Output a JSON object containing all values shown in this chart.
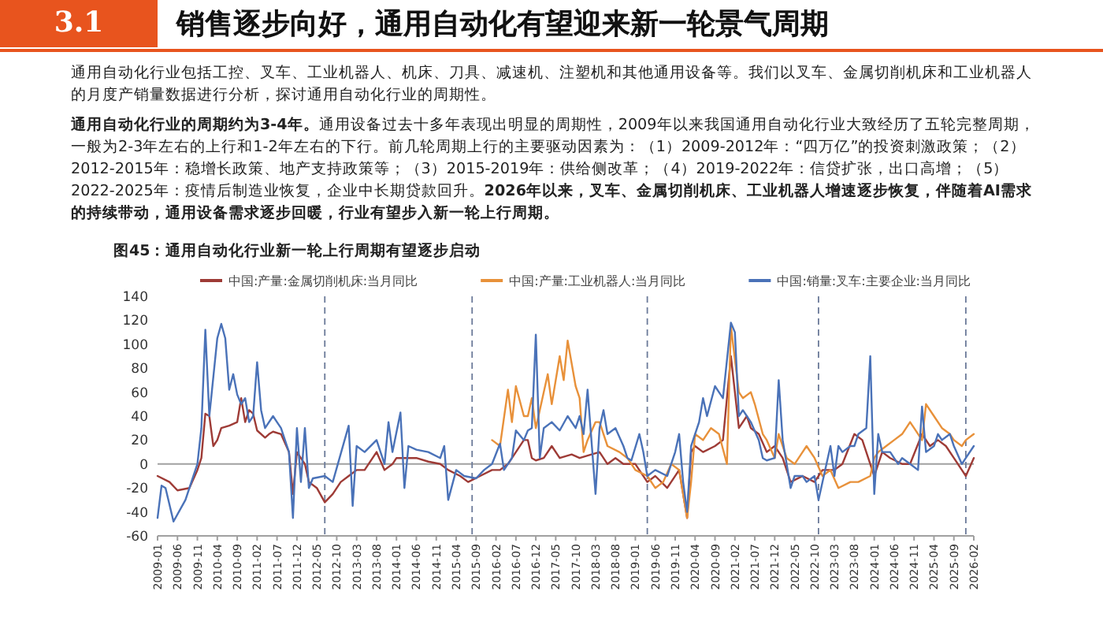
{
  "chart_data": {
    "type": "line",
    "title": "销售逐步向好，通用自动化有望迎来新一轮景气周期",
    "subtitle": "图45：通用自动化行业新一轮上行周期有望逐步启动",
    "annotations": [
      "3.1",
      "通用自动化行业包括工控、叉车、工业机器人、机床、刀具、减速机、注塑机和其他通用设备等。我们以叉车、金属切削机床和工业机器人的月度产销量数据进行分析，探讨通用自动化行业的周期性。",
      "通用自动化行业的周期约为3-4年。",
      "通用设备过去十多年表现出明显的周期性，2009年以来我国通用自动化行业大致经历了五轮完整周期，一般为2-3年左右的上行和1-2年左右的下行。前几轮周期上行的主要驱动因素为：（1）2009-2012年：“四万亿”的投资刺激政策；（2）2012-2015年：稳增长政策、地产支持政策等；（3）2015-2019年：供给侧改革；（4）2019-2022年：信贷扩张，出口高增；（5）2022-2025年：疫情后制造业恢复，企业中长期贷款回升。",
      "2026年以来，叉车、金属切削机床、工业机器人增速逐步恢复，伴随着AI需求的持续带动，通用设备需求逐步回暖，行业有望步入新一轮上行周期。"
    ],
    "legend": "top",
    "line_style": "solid",
    "xlim": [
      "2009-01",
      "2026-02"
    ],
    "xticks": [
      "2009-01",
      "2009-06",
      "2009-11",
      "2010-04",
      "2010-09",
      "2011-02",
      "2011-07",
      "2011-12",
      "2012-05",
      "2012-10",
      "2013-03",
      "2013-08",
      "2014-01",
      "2014-06",
      "2014-11",
      "2015-04",
      "2015-09",
      "2016-02",
      "2016-07",
      "2016-12",
      "2017-05",
      "2017-10",
      "2018-03",
      "2018-08",
      "2019-01",
      "2019-06",
      "2019-11",
      "2020-04",
      "2020-09",
      "2021-02",
      "2021-07",
      "2021-12",
      "2022-05",
      "2022-10",
      "2023-03",
      "2023-08",
      "2024-01",
      "2024-06",
      "2024-11",
      "2025-04",
      "2025-09",
      "2026-02"
    ],
    "ylim": [
      -60,
      140
    ],
    "yticks": [
      -60,
      -40,
      -20,
      0,
      20,
      40,
      60,
      80,
      100,
      120,
      140
    ],
    "ref_lines": [
      {
        "axis": "x",
        "value": "2012-07",
        "color": "#6b7a99",
        "line_style": "dashed"
      },
      {
        "axis": "x",
        "value": "2015-08",
        "color": "#6b7a99",
        "line_style": "dashed"
      },
      {
        "axis": "x",
        "value": "2019-04",
        "color": "#6b7a99",
        "line_style": "dashed"
      },
      {
        "axis": "x",
        "value": "2022-11",
        "color": "#6b7a99",
        "line_style": "dashed"
      },
      {
        "axis": "x",
        "value": "2025-12",
        "color": "#6b7a99",
        "line_style": "dashed"
      }
    ],
    "series": [
      {
        "name": "中国:产量:金属切削机床:当月同比",
        "color": "#9e3b36",
        "x": [
          "2009-01",
          "2009-04",
          "2009-06",
          "2009-09",
          "2009-11",
          "2009-12",
          "2010-01",
          "2010-02",
          "2010-03",
          "2010-04",
          "2010-05",
          "2010-07",
          "2010-09",
          "2010-10",
          "2010-11",
          "2010-12",
          "2011-01",
          "2011-02",
          "2011-04",
          "2011-05",
          "2011-06",
          "2011-08",
          "2011-10",
          "2011-11",
          "2011-12",
          "2012-02",
          "2012-03",
          "2012-05",
          "2012-07",
          "2012-09",
          "2012-11",
          "2013-01",
          "2013-03",
          "2013-05",
          "2013-08",
          "2013-10",
          "2013-12",
          "2014-01",
          "2014-04",
          "2014-06",
          "2014-09",
          "2014-12",
          "2015-02",
          "2015-05",
          "2015-07",
          "2015-10",
          "2016-01",
          "2016-03",
          "2016-05",
          "2016-07",
          "2016-09",
          "2016-10",
          "2016-11",
          "2016-12",
          "2017-02",
          "2017-04",
          "2017-06",
          "2017-09",
          "2017-11",
          "2018-04",
          "2018-06",
          "2018-08",
          "2018-10",
          "2019-01",
          "2019-04",
          "2019-06",
          "2019-09",
          "2019-12",
          "2020-02",
          "2020-03",
          "2020-04",
          "2020-06",
          "2020-09",
          "2020-11",
          "2021-01",
          "2021-03",
          "2021-05",
          "2021-06",
          "2021-08",
          "2021-10",
          "2021-12",
          "2022-02",
          "2022-04",
          "2022-07",
          "2022-10",
          "2022-12",
          "2023-03",
          "2023-05",
          "2023-08",
          "2023-10",
          "2023-12",
          "2024-01",
          "2024-03",
          "2024-05",
          "2024-08",
          "2024-10",
          "2025-01",
          "2025-03",
          "2025-05",
          "2025-07",
          "2025-09",
          "2025-11",
          "2025-12",
          "2026-02"
        ],
        "values": [
          -10,
          -15,
          -22,
          -20,
          -5,
          5,
          42,
          40,
          15,
          20,
          30,
          32,
          35,
          55,
          35,
          45,
          42,
          28,
          22,
          25,
          27,
          25,
          10,
          -25,
          10,
          0,
          -15,
          -20,
          -32,
          -25,
          -15,
          -10,
          -5,
          -5,
          10,
          -5,
          0,
          5,
          5,
          5,
          2,
          0,
          -5,
          -10,
          -15,
          -10,
          -5,
          -5,
          0,
          10,
          20,
          20,
          5,
          3,
          5,
          15,
          5,
          8,
          5,
          10,
          0,
          5,
          0,
          0,
          -15,
          -10,
          -20,
          -5,
          -45,
          10,
          15,
          10,
          15,
          20,
          90,
          30,
          40,
          30,
          25,
          10,
          15,
          5,
          -15,
          -10,
          -15,
          -5,
          -5,
          0,
          25,
          20,
          0,
          -10,
          10,
          5,
          0,
          0,
          25,
          15,
          20,
          15,
          5,
          -5,
          -10,
          5
        ]
      },
      {
        "name": "中国:产量:工业机器人:当月同比",
        "color": "#e8913a",
        "x": [
          "2016-01",
          "2016-03",
          "2016-05",
          "2016-06",
          "2016-07",
          "2016-09",
          "2016-10",
          "2016-11",
          "2016-12",
          "2017-02",
          "2017-03",
          "2017-04",
          "2017-06",
          "2017-07",
          "2017-08",
          "2017-10",
          "2017-11",
          "2017-12",
          "2018-01",
          "2018-03",
          "2018-04",
          "2018-06",
          "2018-09",
          "2018-11",
          "2019-01",
          "2019-04",
          "2019-06",
          "2019-08",
          "2019-10",
          "2019-12",
          "2020-02",
          "2020-03",
          "2020-04",
          "2020-06",
          "2020-08",
          "2020-10",
          "2020-12",
          "2021-01",
          "2021-03",
          "2021-04",
          "2021-06",
          "2021-07",
          "2021-09",
          "2021-10",
          "2021-12",
          "2022-01",
          "2022-03",
          "2022-05",
          "2022-07",
          "2022-08",
          "2022-10",
          "2022-12",
          "2023-02",
          "2023-04",
          "2023-07",
          "2023-09",
          "2023-12",
          "2024-01",
          "2024-02",
          "2024-04",
          "2024-06",
          "2024-08",
          "2024-10",
          "2024-11",
          "2025-01",
          "2025-02",
          "2025-04",
          "2025-06",
          "2025-08",
          "2025-09",
          "2025-11",
          "2025-12",
          "2026-02"
        ],
        "values": [
          20,
          15,
          62,
          35,
          65,
          40,
          40,
          55,
          30,
          60,
          75,
          50,
          90,
          70,
          103,
          65,
          55,
          10,
          20,
          35,
          35,
          15,
          10,
          5,
          -5,
          -10,
          -20,
          -15,
          0,
          -5,
          -45,
          -15,
          25,
          20,
          30,
          25,
          0,
          115,
          60,
          55,
          60,
          50,
          25,
          20,
          5,
          25,
          5,
          0,
          10,
          15,
          5,
          -10,
          -5,
          -20,
          -15,
          -15,
          -10,
          5,
          10,
          15,
          20,
          25,
          35,
          30,
          20,
          50,
          40,
          30,
          25,
          20,
          15,
          20,
          25
        ]
      },
      {
        "name": "中国:销量:叉车:主要企业:当月同比",
        "color": "#4a72b8",
        "x": [
          "2009-01",
          "2009-02",
          "2009-03",
          "2009-05",
          "2009-08",
          "2009-10",
          "2009-11",
          "2009-12",
          "2010-01",
          "2010-02",
          "2010-04",
          "2010-05",
          "2010-06",
          "2010-07",
          "2010-08",
          "2010-09",
          "2010-10",
          "2010-11",
          "2010-12",
          "2011-01",
          "2011-02",
          "2011-03",
          "2011-04",
          "2011-06",
          "2011-07",
          "2011-08",
          "2011-10",
          "2011-11",
          "2011-12",
          "2012-01",
          "2012-02",
          "2012-03",
          "2012-04",
          "2012-07",
          "2012-09",
          "2013-01",
          "2013-02",
          "2013-03",
          "2013-05",
          "2013-08",
          "2013-10",
          "2013-11",
          "2013-12",
          "2014-02",
          "2014-03",
          "2014-04",
          "2014-06",
          "2014-09",
          "2014-12",
          "2015-01",
          "2015-02",
          "2015-04",
          "2015-06",
          "2015-09",
          "2015-11",
          "2016-01",
          "2016-03",
          "2016-04",
          "2016-06",
          "2016-07",
          "2016-09",
          "2016-10",
          "2016-11",
          "2016-12",
          "2017-01",
          "2017-02",
          "2017-04",
          "2017-06",
          "2017-08",
          "2017-10",
          "2017-11",
          "2017-12",
          "2018-01",
          "2018-03",
          "2018-04",
          "2018-05",
          "2018-06",
          "2018-08",
          "2018-10",
          "2018-11",
          "2018-12",
          "2019-02",
          "2019-03",
          "2019-04",
          "2019-06",
          "2019-09",
          "2019-11",
          "2019-12",
          "2020-01",
          "2020-02",
          "2020-03",
          "2020-05",
          "2020-06",
          "2020-07",
          "2020-09",
          "2020-10",
          "2020-11",
          "2021-01",
          "2021-02",
          "2021-03",
          "2021-04",
          "2021-05",
          "2021-06",
          "2021-08",
          "2021-09",
          "2021-10",
          "2021-12",
          "2022-01",
          "2022-02",
          "2022-04",
          "2022-05",
          "2022-07",
          "2022-08",
          "2022-10",
          "2022-11",
          "2023-01",
          "2023-02",
          "2023-03",
          "2023-04",
          "2023-05",
          "2023-07",
          "2023-08",
          "2023-09",
          "2023-11",
          "2023-12",
          "2024-01",
          "2024-02",
          "2024-03",
          "2024-05",
          "2024-07",
          "2024-08",
          "2024-10",
          "2024-12",
          "2025-01",
          "2025-02",
          "2025-04",
          "2025-05",
          "2025-06",
          "2025-08",
          "2025-09",
          "2025-11",
          "2025-12",
          "2026-02"
        ],
        "values": [
          -45,
          -18,
          -20,
          -48,
          -30,
          -10,
          0,
          30,
          112,
          40,
          105,
          117,
          105,
          62,
          75,
          58,
          50,
          55,
          35,
          40,
          85,
          45,
          30,
          40,
          35,
          30,
          10,
          -45,
          30,
          -15,
          30,
          -20,
          -12,
          -10,
          -15,
          32,
          -35,
          15,
          10,
          20,
          0,
          35,
          10,
          43,
          -20,
          15,
          12,
          10,
          5,
          15,
          -30,
          -5,
          -10,
          -12,
          -5,
          0,
          17,
          -5,
          5,
          28,
          20,
          28,
          30,
          108,
          5,
          30,
          35,
          28,
          40,
          30,
          40,
          25,
          62,
          -25,
          30,
          45,
          25,
          30,
          15,
          5,
          3,
          25,
          10,
          -10,
          -5,
          -10,
          10,
          25,
          -15,
          -40,
          15,
          35,
          55,
          40,
          65,
          60,
          55,
          118,
          110,
          40,
          45,
          40,
          35,
          20,
          5,
          3,
          5,
          70,
          20,
          -20,
          -10,
          -10,
          -15,
          -10,
          -30,
          0,
          15,
          -10,
          15,
          10,
          15,
          15,
          25,
          30,
          90,
          -25,
          25,
          10,
          10,
          0,
          5,
          0,
          -5,
          48,
          10,
          15,
          25,
          20,
          25,
          15,
          0,
          5,
          15
        ]
      }
    ]
  }
}
